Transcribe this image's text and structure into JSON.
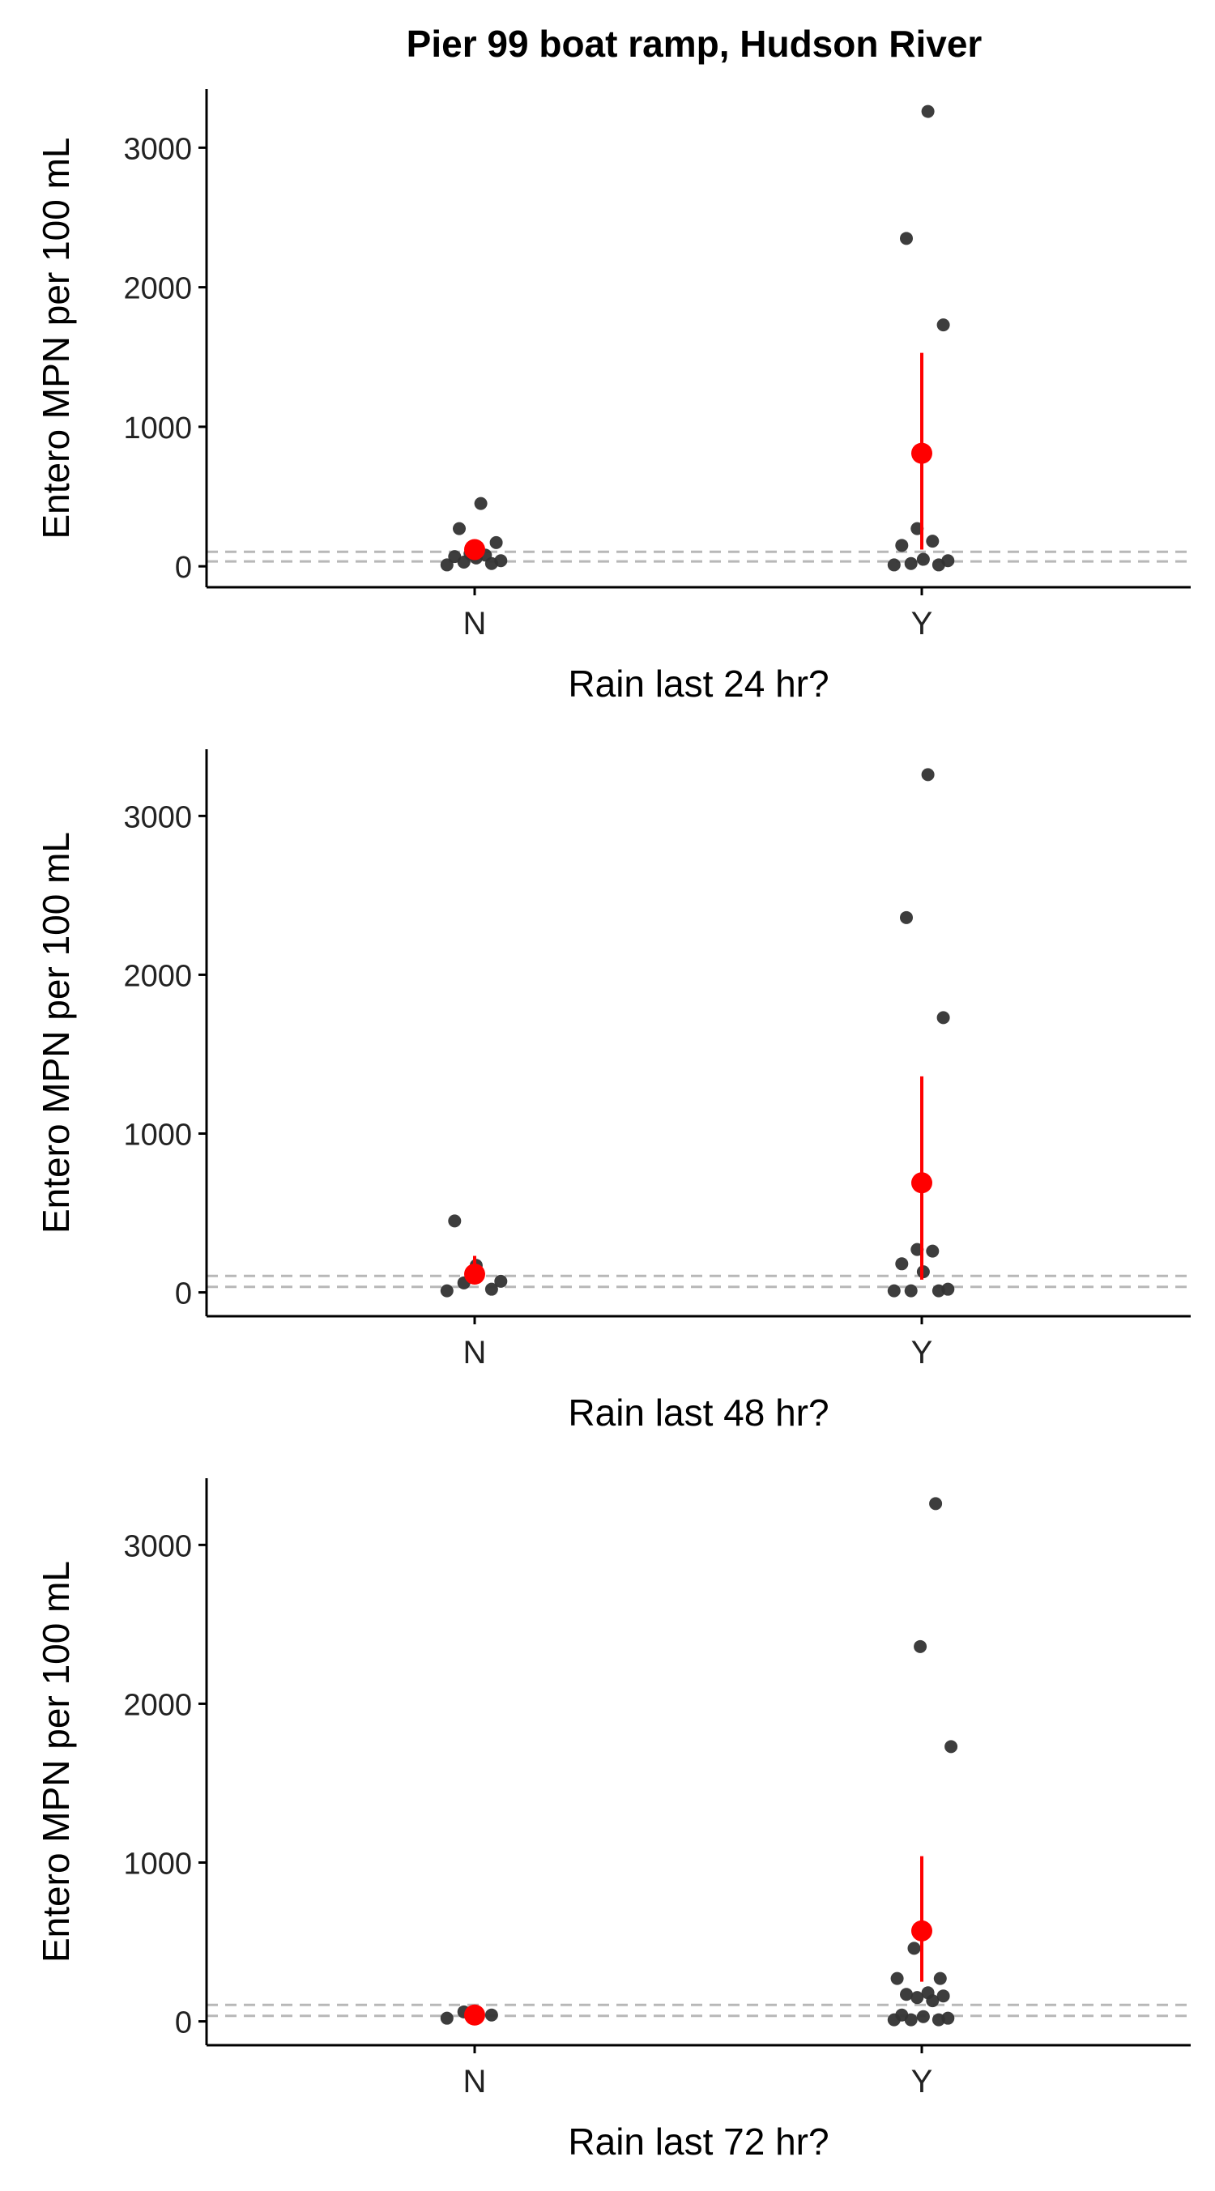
{
  "title": "Pier 99 boat ramp, Hudson River",
  "chart_data": [
    {
      "type": "scatter",
      "xlabel": "Rain last 24 hr?",
      "ylabel": "Entero MPN per 100 mL",
      "categories": [
        "N",
        "Y"
      ],
      "yticks": [
        0,
        1000,
        2000,
        3000
      ],
      "ylim": [
        -150,
        3420
      ],
      "reference_lines": [
        35,
        104
      ],
      "points": {
        "N": [
          10,
          20,
          30,
          40,
          60,
          70,
          80,
          90,
          170,
          270,
          450
        ],
        "Y": [
          10,
          10,
          20,
          40,
          50,
          150,
          180,
          270,
          1730,
          2350,
          3260
        ]
      },
      "mean": {
        "N": 120,
        "Y": 810
      },
      "interval": {
        "N": [
          80,
          160
        ],
        "Y": [
          120,
          1530
        ]
      },
      "grid": false,
      "mean_color": "#ff0000",
      "point_color": "#333333"
    },
    {
      "type": "scatter",
      "xlabel": "Rain last 48 hr?",
      "ylabel": "Entero MPN per 100 mL",
      "categories": [
        "N",
        "Y"
      ],
      "yticks": [
        0,
        1000,
        2000,
        3000
      ],
      "ylim": [
        -150,
        3420
      ],
      "reference_lines": [
        35,
        104
      ],
      "points": {
        "N": [
          10,
          20,
          60,
          70,
          170,
          450
        ],
        "Y": [
          10,
          10,
          10,
          20,
          130,
          180,
          260,
          270,
          1730,
          2360,
          3260
        ]
      },
      "mean": {
        "N": 115,
        "Y": 690
      },
      "interval": {
        "N": [
          60,
          230
        ],
        "Y": [
          80,
          1360
        ]
      },
      "grid": false,
      "mean_color": "#ff0000",
      "point_color": "#333333"
    },
    {
      "type": "scatter",
      "xlabel": "Rain last 72 hr?",
      "ylabel": "Entero MPN per 100 mL",
      "categories": [
        "N",
        "Y"
      ],
      "yticks": [
        0,
        1000,
        2000,
        3000
      ],
      "ylim": [
        -150,
        3420
      ],
      "reference_lines": [
        35,
        104
      ],
      "points": {
        "N": [
          20,
          40,
          60
        ],
        "Y": [
          10,
          10,
          10,
          20,
          30,
          40,
          130,
          150,
          160,
          170,
          180,
          270,
          270,
          460,
          1730,
          2360,
          3260
        ]
      },
      "mean": {
        "N": 40,
        "Y": 570
      },
      "interval": {
        "N": [
          20,
          60
        ],
        "Y": [
          250,
          1040
        ]
      },
      "grid": false,
      "mean_color": "#ff0000",
      "point_color": "#333333"
    }
  ]
}
